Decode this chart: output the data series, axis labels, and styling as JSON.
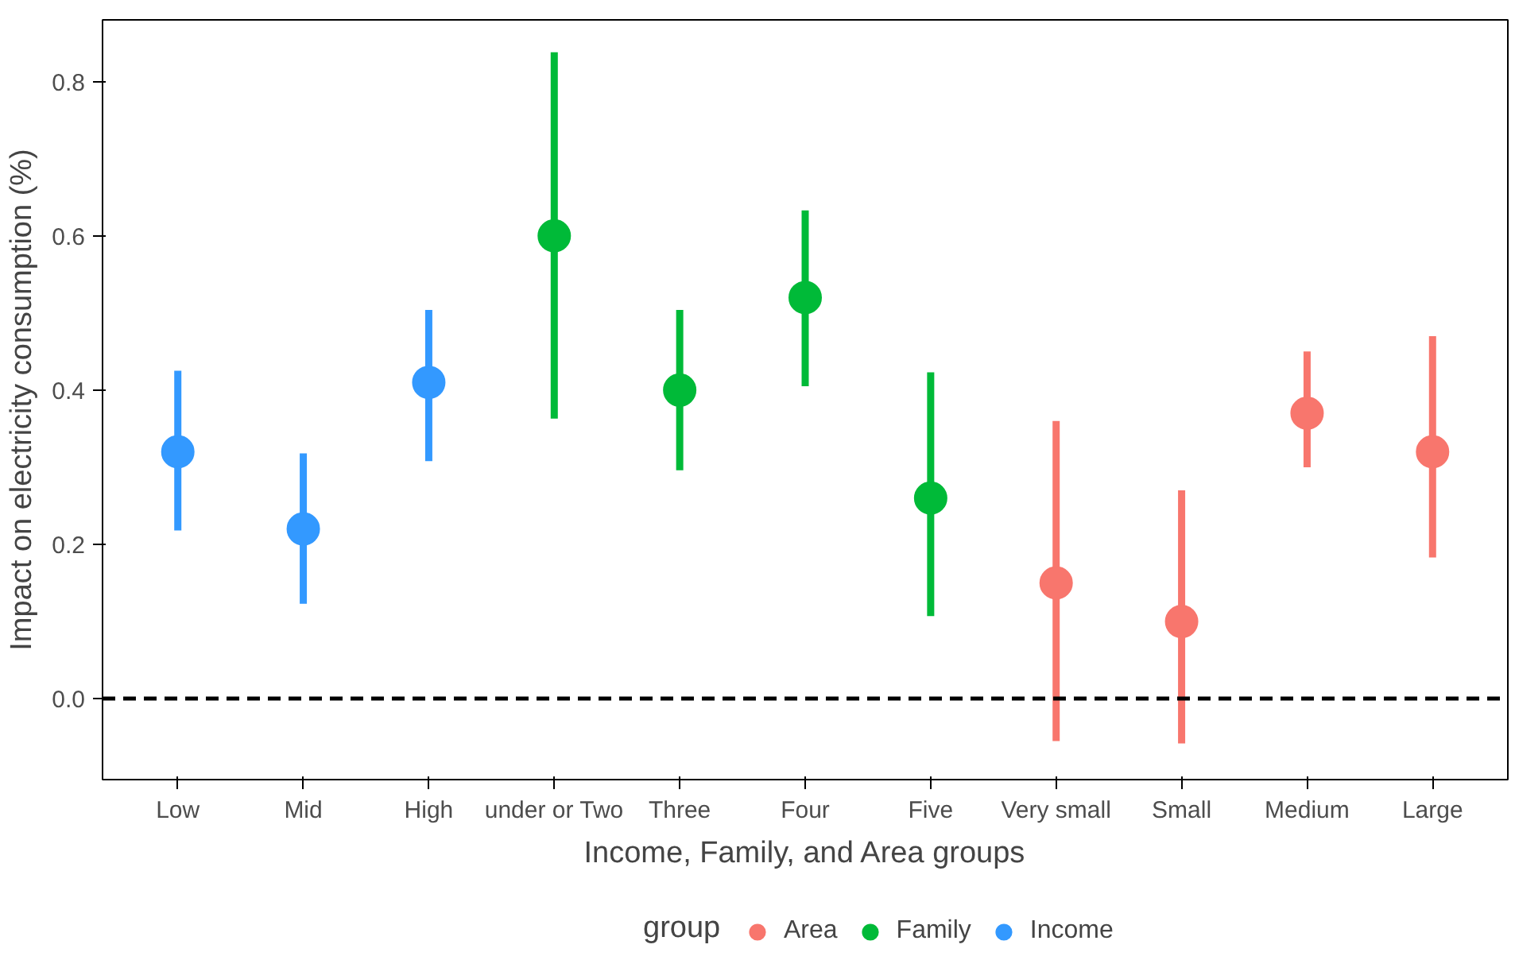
{
  "chart_data": {
    "type": "scatter",
    "xlabel": "Income, Family, and Area groups",
    "ylabel": "Impact on electricity consumption (%)",
    "legend_title": "group",
    "categories": [
      "Low",
      "Mid",
      "High",
      "under or Two",
      "Three",
      "Four",
      "Five",
      "Very small",
      "Small",
      "Medium",
      "Large"
    ],
    "series": [
      {
        "name": "Area",
        "color": "#f8766d",
        "values": [
          null,
          null,
          null,
          null,
          null,
          null,
          null,
          0.15,
          0.1,
          0.37,
          0.32
        ],
        "errors": [
          null,
          null,
          null,
          null,
          null,
          null,
          null,
          [
            -0.055,
            0.36
          ],
          [
            -0.058,
            0.27
          ],
          [
            0.3,
            0.45
          ],
          [
            0.183,
            0.47
          ]
        ]
      },
      {
        "name": "Family",
        "color": "#00ba38",
        "values": [
          null,
          null,
          null,
          0.6,
          0.4,
          0.52,
          0.26,
          null,
          null,
          null,
          null
        ],
        "errors": [
          null,
          null,
          null,
          [
            0.363,
            0.838
          ],
          [
            0.296,
            0.504
          ],
          [
            0.405,
            0.633
          ],
          [
            0.107,
            0.423
          ],
          null,
          null,
          null,
          null
        ]
      },
      {
        "name": "Income",
        "color": "#3399ff",
        "values": [
          0.32,
          0.22,
          0.41,
          null,
          null,
          null,
          null,
          null,
          null,
          null,
          null
        ],
        "errors": [
          [
            0.218,
            0.425
          ],
          [
            0.123,
            0.318
          ],
          [
            0.308,
            0.504
          ],
          null,
          null,
          null,
          null,
          null,
          null,
          null,
          null
        ]
      }
    ],
    "ylim": [
      -0.105,
      0.88
    ],
    "yticks": [
      {
        "value": 0,
        "label": "0.0"
      },
      {
        "value": 0.2,
        "label": "0.2"
      },
      {
        "value": 0.4,
        "label": "0.4"
      },
      {
        "value": 0.6,
        "label": "0.6"
      },
      {
        "value": 0.8,
        "label": "0.8"
      }
    ],
    "ref_lines": [
      {
        "axis": "y",
        "value": 0,
        "line_style": "dashed",
        "color": "#000000"
      }
    ],
    "grid": false,
    "legend": "bottom",
    "marker": "circle"
  }
}
